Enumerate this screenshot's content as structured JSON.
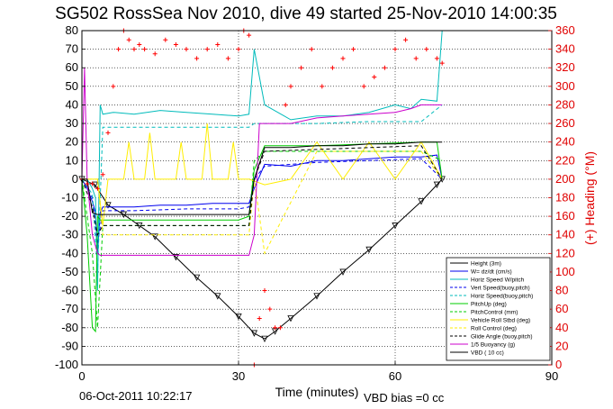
{
  "chart_data": {
    "type": "line",
    "title": "SG502 RossSea Nov 2010, dive 49 started 25-Nov-2010 14:00:35",
    "xlabel": "Time (minutes)",
    "ylabel_right": "(+) Heading (°M)",
    "footer_left": "06-Oct-2011 10:22:17",
    "footer_right": "VBD bias =0 cc",
    "xlim": [
      0,
      90
    ],
    "ylim": [
      -100,
      80
    ],
    "ylim_right": [
      0,
      360
    ],
    "xticks": [
      "0",
      "30",
      "60",
      "90"
    ],
    "yticks": [
      "-100",
      "-90",
      "-80",
      "-70",
      "-60",
      "-50",
      "-40",
      "-30",
      "-20",
      "-10",
      "0",
      "10",
      "20",
      "30",
      "40",
      "50",
      "60",
      "70",
      "80"
    ],
    "yticks_right": [
      "0",
      "20",
      "40",
      "60",
      "80",
      "100",
      "120",
      "140",
      "160",
      "180",
      "200",
      "220",
      "240",
      "260",
      "280",
      "300",
      "320",
      "340",
      "360"
    ],
    "grid": true,
    "legend_position": "bottom-right",
    "series": [
      {
        "name": "Height (3m)",
        "color": "#000000",
        "style": "solid",
        "marker": "triangle",
        "x": [
          0,
          2.5,
          5,
          8,
          11,
          14,
          18,
          22,
          26,
          30,
          33,
          35,
          37,
          40,
          45,
          50,
          55,
          60,
          65,
          68,
          69
        ],
        "y": [
          0,
          -3,
          -14,
          -19,
          -25,
          -31,
          -42,
          -53,
          -63,
          -74,
          -83,
          -86,
          -82,
          -75,
          -63,
          -50,
          -38,
          -25,
          -12,
          -3,
          0
        ]
      },
      {
        "name": "W= dz/dt (cm/s)",
        "color": "#0000ee",
        "style": "solid",
        "x": [
          0,
          1,
          2,
          2.6,
          3,
          3.5,
          4,
          6,
          10,
          15,
          20,
          25,
          30,
          32,
          33,
          35,
          40,
          45,
          50,
          55,
          60,
          65,
          68,
          69
        ],
        "y": [
          0,
          -5,
          -12,
          -18,
          -40,
          -18,
          -15,
          -15,
          -15,
          -14,
          -14,
          -13,
          -13,
          -13,
          -5,
          8,
          7,
          10,
          10,
          11,
          12,
          12,
          13,
          0
        ]
      },
      {
        "name": "Horiz Speed W/pitch",
        "color": "#00bbbb",
        "style": "solid",
        "x": [
          0,
          1,
          2,
          2.6,
          3,
          3.5,
          4,
          6,
          10,
          15,
          20,
          25,
          30,
          32,
          33,
          35,
          40,
          45,
          50,
          55,
          60,
          63,
          65,
          68,
          69
        ],
        "y": [
          0,
          0,
          -5,
          -10,
          -60,
          40,
          35,
          36,
          35,
          37,
          36,
          35,
          34,
          35,
          70,
          40,
          32,
          34,
          34,
          36,
          40,
          38,
          43,
          42,
          80
        ]
      },
      {
        "name": "Vert Speed(buoy,pitch)",
        "color": "#0000ee",
        "style": "dash",
        "x": [
          0,
          2,
          3,
          4,
          10,
          20,
          30,
          32,
          33,
          35,
          45,
          55,
          65,
          69
        ],
        "y": [
          0,
          -10,
          -35,
          -17,
          -17,
          -16,
          -16,
          -15,
          0,
          7,
          9,
          10,
          11,
          0
        ]
      },
      {
        "name": "Horiz Speed(buoy,pitch)",
        "color": "#00bbbb",
        "style": "dash",
        "x": [
          0,
          2,
          3,
          4,
          10,
          20,
          30,
          32,
          33,
          35,
          45,
          55,
          65,
          69
        ],
        "y": [
          0,
          -8,
          -50,
          28,
          28,
          28,
          28,
          28,
          30,
          30,
          30,
          31,
          31,
          40
        ]
      },
      {
        "name": "PitchUp (deg)",
        "color": "#00cc00",
        "style": "solid",
        "x": [
          0,
          1,
          2,
          2.6,
          3,
          3.5,
          4,
          10,
          20,
          30,
          32,
          33,
          35,
          45,
          55,
          65,
          68,
          69
        ],
        "y": [
          0,
          -30,
          -80,
          -82,
          -20,
          -22,
          -22,
          -22,
          -22,
          -22,
          -20,
          5,
          18,
          18,
          19,
          20,
          20,
          0
        ]
      },
      {
        "name": "PitchControl (mm)",
        "color": "#00cc00",
        "style": "dash",
        "x": [
          0,
          2,
          3,
          4,
          10,
          20,
          30,
          32,
          33,
          35,
          45,
          55,
          65,
          69
        ],
        "y": [
          0,
          -40,
          -80,
          -25,
          -25,
          -25,
          -25,
          -25,
          10,
          15,
          15,
          15,
          15,
          10
        ]
      },
      {
        "name": "Vehicle Roll Stbd (deg)",
        "color": "#ffee00",
        "style": "solid",
        "x": [
          0,
          3,
          4,
          5,
          8,
          9,
          10,
          12,
          13,
          14,
          18,
          19,
          20,
          23,
          24,
          25,
          28,
          29,
          30,
          32,
          35,
          40,
          45,
          50,
          55,
          60,
          65,
          69
        ],
        "y": [
          0,
          0,
          -25,
          0,
          0,
          20,
          0,
          0,
          25,
          0,
          0,
          20,
          0,
          0,
          30,
          0,
          0,
          20,
          0,
          0,
          -3,
          0,
          20,
          0,
          20,
          0,
          20,
          0
        ]
      },
      {
        "name": "Roll Control (deg)",
        "color": "#ffee00",
        "style": "dash",
        "x": [
          0,
          3,
          4,
          10,
          20,
          30,
          32,
          33,
          35,
          45,
          55,
          65,
          69
        ],
        "y": [
          0,
          0,
          -30,
          -30,
          -30,
          -30,
          -30,
          0,
          -40,
          15,
          15,
          15,
          0
        ]
      },
      {
        "name": "Glide Angle (buoy,pitch)",
        "color": "#000000",
        "style": "dash",
        "x": [
          0,
          2,
          3,
          4,
          10,
          20,
          30,
          32,
          33,
          35,
          45,
          55,
          65,
          69
        ],
        "y": [
          0,
          -15,
          -30,
          -25,
          -25,
          -25,
          -25,
          -25,
          0,
          15,
          16,
          17,
          18,
          0
        ]
      },
      {
        "name": "1/5 Buoyancy (g)",
        "color": "#cc00cc",
        "style": "solid",
        "x": [
          0,
          0.5,
          1,
          2,
          3,
          3.5,
          10,
          20,
          30,
          32,
          33,
          34,
          40,
          45,
          50,
          55,
          60,
          63,
          65,
          68,
          69
        ],
        "y": [
          0,
          60,
          0,
          -30,
          -40,
          -41,
          -41,
          -41,
          -41,
          -41,
          -30,
          30,
          30,
          33,
          34,
          35,
          36,
          38,
          40,
          40,
          40
        ]
      },
      {
        "name": "VBD ( 10 cc)",
        "color": "#000000",
        "style": "solid",
        "x": [
          0,
          1,
          2,
          3,
          4,
          10,
          20,
          30,
          32,
          33,
          35,
          40,
          45,
          50,
          55,
          60,
          65,
          69
        ],
        "y": [
          0,
          0,
          -18,
          -19,
          -19,
          -19,
          -19,
          -19,
          -19,
          0,
          17,
          17,
          18,
          18,
          19,
          19,
          20,
          20
        ]
      },
      {
        "name": "Heading",
        "color": "#ff0000",
        "style": "marker",
        "marker": "plus",
        "axis": "right",
        "x": [
          0,
          1,
          2,
          3,
          4,
          5,
          6,
          7,
          8,
          9,
          10,
          11,
          12,
          14,
          16,
          18,
          20,
          22,
          24,
          26,
          28,
          30,
          31,
          32,
          33,
          34,
          35,
          36,
          37,
          38,
          39,
          40,
          42,
          44,
          46,
          48,
          50,
          52,
          54,
          56,
          58,
          60,
          62,
          64,
          66,
          68,
          69
        ],
        "y": [
          200,
          195,
          195,
          190,
          205,
          250,
          300,
          340,
          360,
          350,
          340,
          345,
          340,
          335,
          350,
          345,
          340,
          330,
          340,
          345,
          330,
          340,
          360,
          355,
          0,
          50,
          80,
          60,
          40,
          40,
          280,
          300,
          320,
          340,
          300,
          320,
          330,
          340,
          300,
          310,
          320,
          340,
          350,
          330,
          340,
          330,
          325
        ]
      }
    ]
  }
}
